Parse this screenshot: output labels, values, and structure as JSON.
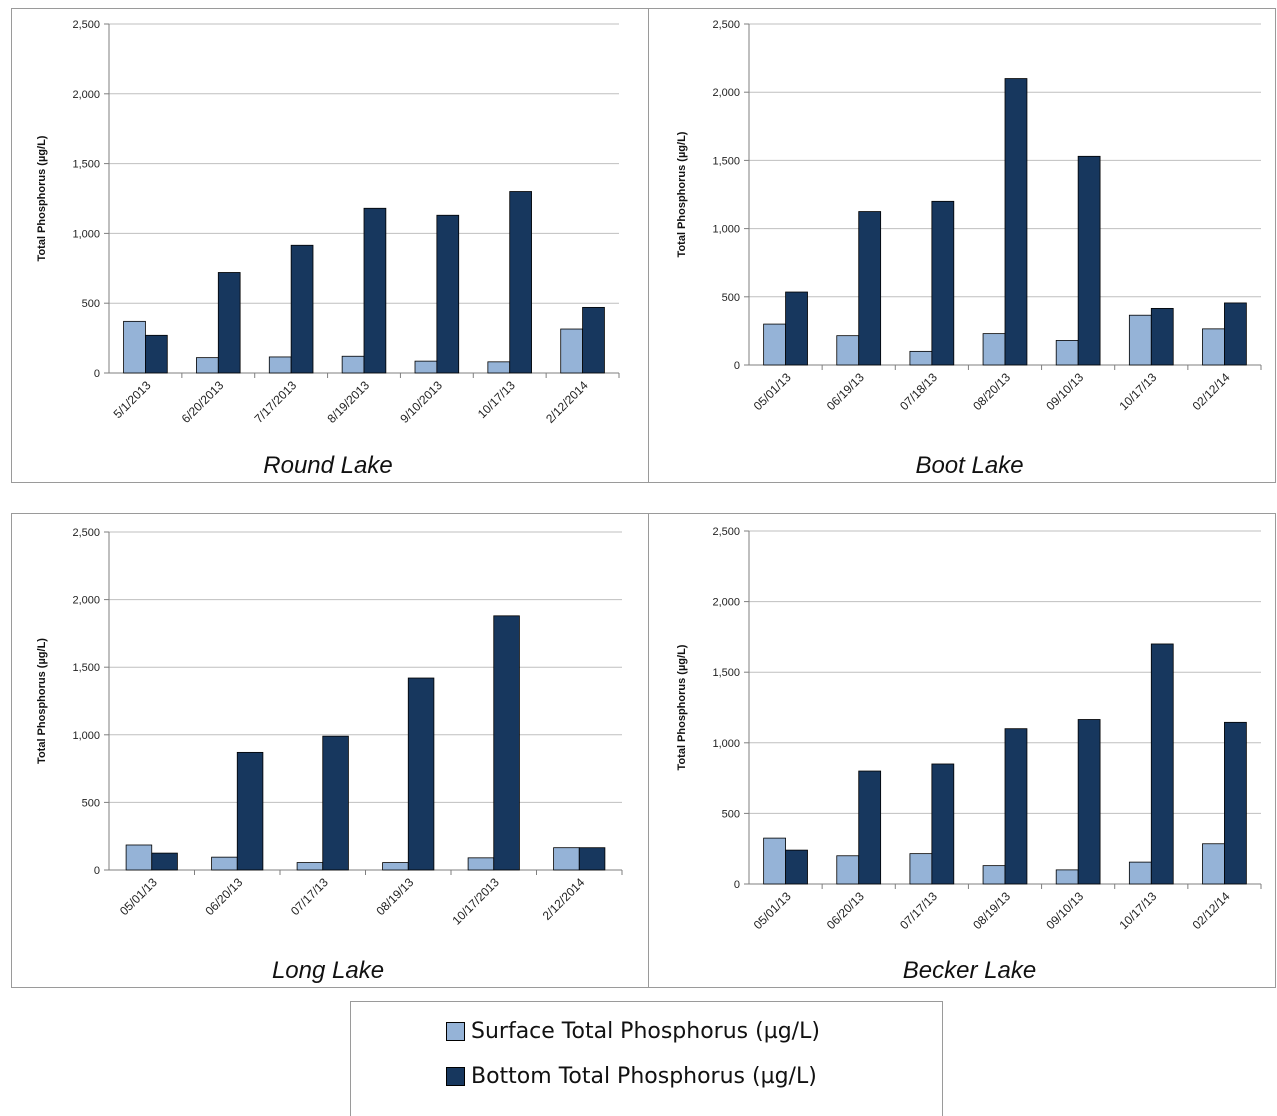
{
  "colors": {
    "surface": "#95B3D7",
    "bottom": "#17375E",
    "grid": "#bfbfbf",
    "axis": "#7f7f7f"
  },
  "legend": {
    "surface_label": "Surface Total Phosphorus (µg/L)",
    "bottom_label": "Bottom Total Phosphorus  (µg/L)"
  },
  "chart_data": [
    {
      "type": "bar",
      "lake": "Round Lake",
      "ylabel": "Total Phosphorus  (µg/L)",
      "ylim": [
        0,
        2500
      ],
      "yticks": [
        0,
        500,
        1000,
        1500,
        2000,
        2500
      ],
      "ytick_labels": [
        "0",
        "500",
        "1,000",
        "1,500",
        "2,000",
        "2,500"
      ],
      "grid": true,
      "categories": [
        "5/1/2013",
        "6/20/2013",
        "7/17/2013",
        "8/19/2013",
        "9/10/2013",
        "10/17/13",
        "2/12/2014"
      ],
      "series": [
        {
          "name": "Surface Total Phosphorus (µg/L)",
          "values": [
            370,
            110,
            115,
            120,
            85,
            80,
            315
          ]
        },
        {
          "name": "Bottom Total Phosphorus  (µg/L)",
          "values": [
            270,
            720,
            915,
            1180,
            1130,
            1300,
            470
          ]
        }
      ]
    },
    {
      "type": "bar",
      "lake": "Boot Lake",
      "ylabel": "Total Phosphorus  (µg/L)",
      "ylim": [
        0,
        2500
      ],
      "yticks": [
        0,
        500,
        1000,
        1500,
        2000,
        2500
      ],
      "ytick_labels": [
        "0",
        "500",
        "1,000",
        "1,500",
        "2,000",
        "2,500"
      ],
      "grid": true,
      "categories": [
        "05/01/13",
        "06/19/13",
        "07/18/13",
        "08/20/13",
        "09/10/13",
        "10/17/13",
        "02/12/14"
      ],
      "series": [
        {
          "name": "Surface Total Phosphorus (µg/L)",
          "values": [
            300,
            215,
            100,
            230,
            180,
            365,
            265
          ]
        },
        {
          "name": "Bottom Total Phosphorus  (µg/L)",
          "values": [
            535,
            1125,
            1200,
            2100,
            1530,
            415,
            455
          ]
        }
      ]
    },
    {
      "type": "bar",
      "lake": "Long Lake",
      "ylabel": "Total Phosphorus  (µg/L)",
      "ylim": [
        0,
        2500
      ],
      "yticks": [
        0,
        500,
        1000,
        1500,
        2000,
        2500
      ],
      "ytick_labels": [
        "0",
        "500",
        "1,000",
        "1,500",
        "2,000",
        "2,500"
      ],
      "grid": true,
      "categories": [
        "05/01/13",
        "06/20/13",
        "07/17/13",
        "08/19/13",
        "10/17/2013",
        "2/12/2014"
      ],
      "series": [
        {
          "name": "Surface Total Phosphorus (µg/L)",
          "values": [
            185,
            95,
            55,
            55,
            90,
            165
          ]
        },
        {
          "name": "Bottom Total Phosphorus  (µg/L)",
          "values": [
            125,
            870,
            990,
            1420,
            1880,
            165
          ]
        }
      ]
    },
    {
      "type": "bar",
      "lake": "Becker Lake",
      "ylabel": "Total Phosphorus  (µg/L)",
      "ylim": [
        0,
        2500
      ],
      "yticks": [
        0,
        500,
        1000,
        1500,
        2000,
        2500
      ],
      "ytick_labels": [
        "0",
        "500",
        "1,000",
        "1,500",
        "2,000",
        "2,500"
      ],
      "grid": true,
      "categories": [
        "05/01/13",
        "06/20/13",
        "07/17/13",
        "08/19/13",
        "09/10/13",
        "10/17/13",
        "02/12/14"
      ],
      "series": [
        {
          "name": "Surface Total Phosphorus (µg/L)",
          "values": [
            325,
            200,
            215,
            130,
            100,
            155,
            285
          ]
        },
        {
          "name": "Bottom Total Phosphorus  (µg/L)",
          "values": [
            240,
            800,
            850,
            1100,
            1165,
            1700,
            1145
          ]
        }
      ]
    }
  ]
}
